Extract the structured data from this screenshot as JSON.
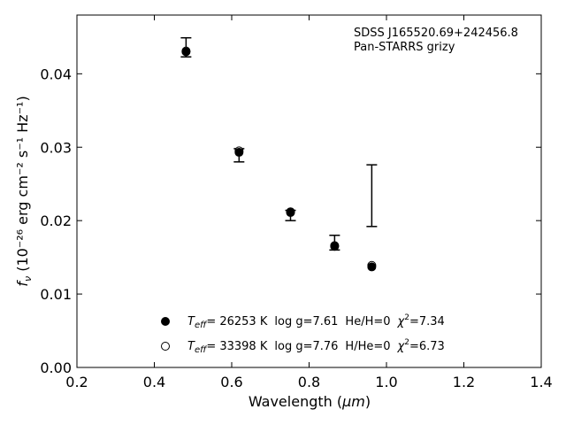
{
  "chart_data": {
    "type": "scatter",
    "xlabel": "Wavelength",
    "xlabel_unit": "μm",
    "ylabel_symbol": "f",
    "ylabel_sub": "ν",
    "ylabel_unit": "(10⁻²⁶ erg cm⁻² s⁻¹ Hz⁻¹)",
    "xlim": [
      0.2,
      1.4
    ],
    "ylim": [
      0.0,
      0.048
    ],
    "xticks": [
      0.2,
      0.4,
      0.6,
      0.8,
      1.0,
      1.2,
      1.4
    ],
    "xtick_labels": [
      "0.2",
      "0.4",
      "0.6",
      "0.8",
      "1.0",
      "1.2",
      "1.4"
    ],
    "yticks": [
      0.0,
      0.01,
      0.02,
      0.03,
      0.04
    ],
    "ytick_labels": [
      "0.00",
      "0.01",
      "0.02",
      "0.03",
      "0.04"
    ],
    "grid": false,
    "annotation": {
      "line1": "SDSS J165520.69+242456.8",
      "line2": "Pan-STARRS grizy"
    },
    "observed": {
      "x": [
        0.482,
        0.619,
        0.752,
        0.866,
        0.962
      ],
      "y": [
        0.0436,
        0.0289,
        0.0207,
        0.017,
        0.0234
      ],
      "yerr": [
        0.0013,
        0.0009,
        0.0007,
        0.001,
        0.0042
      ]
    },
    "series": [
      {
        "marker": "filled",
        "x": [
          0.482,
          0.619,
          0.752,
          0.866,
          0.962
        ],
        "y": [
          0.043,
          0.0293,
          0.0211,
          0.0165,
          0.0137
        ],
        "legend": {
          "teff_symbol": "T",
          "teff_sub": "eff",
          "teff_value": "= 26253 K",
          "logg": "log g=7.61",
          "comp": "He/H=0",
          "chi_symbol": "χ",
          "chi_exp": "2",
          "chi_value": "=7.34"
        }
      },
      {
        "marker": "open",
        "x": [
          0.482,
          0.619,
          0.752,
          0.866,
          0.962
        ],
        "y": [
          0.0431,
          0.0295,
          0.0212,
          0.0166,
          0.0139
        ],
        "legend": {
          "teff_symbol": "T",
          "teff_sub": "eff",
          "teff_value": "= 33398 K",
          "logg": "log g=7.76",
          "comp": "H/He=0",
          "chi_symbol": "χ",
          "chi_exp": "2",
          "chi_value": "=6.73"
        }
      }
    ]
  }
}
